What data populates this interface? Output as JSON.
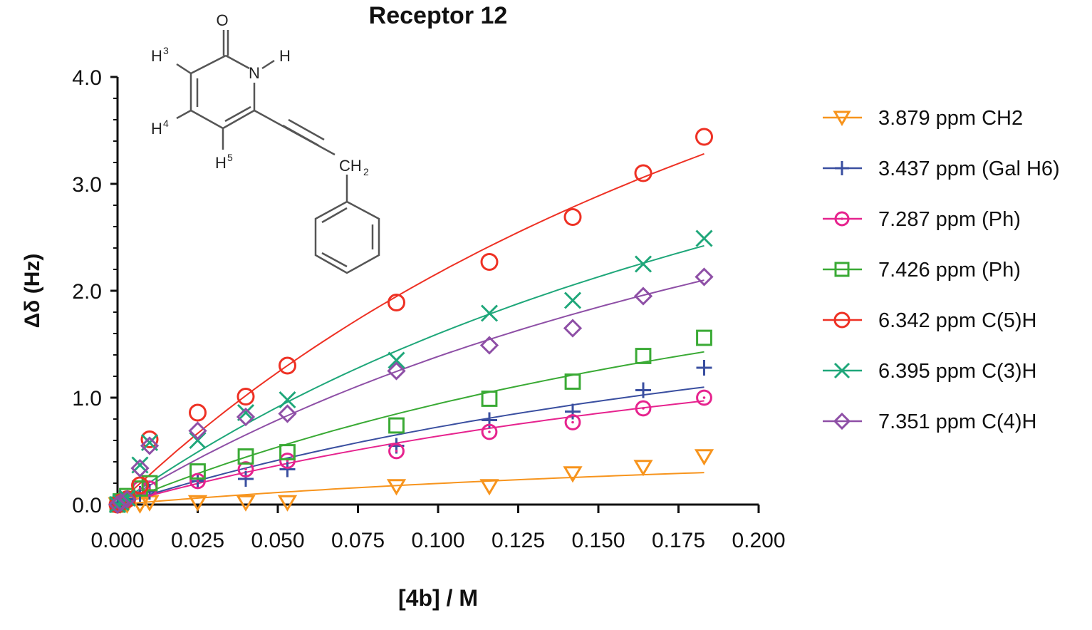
{
  "chart_data": {
    "type": "scatter",
    "title": "Receptor 12",
    "xlabel": "[4b] / M",
    "ylabel": "Δδ (Hz)",
    "xlim": [
      0,
      0.2
    ],
    "ylim": [
      0,
      4.0
    ],
    "xticks": [
      "0.000",
      "0.025",
      "0.050",
      "0.075",
      "0.100",
      "0.125",
      "0.150",
      "0.175",
      "0.200"
    ],
    "yticks": [
      "0.0",
      "1.0",
      "2.0",
      "3.0",
      "4.0"
    ],
    "legend_position": "right",
    "grid": false,
    "x": [
      0,
      0.001,
      0.003,
      0.007,
      0.01,
      0.025,
      0.04,
      0.053,
      0.087,
      0.116,
      0.142,
      0.164,
      0.183
    ],
    "fit_model": "y = Bmax*x/(Kd+x)",
    "series": [
      {
        "name": "3.879 ppm CH2",
        "marker": "triangle-down",
        "color": "#f7941d",
        "fit": {
          "Bmax": 0.79,
          "Kd": 0.3
        },
        "values": [
          0,
          0,
          0,
          0,
          0.02,
          0.02,
          0.02,
          0.02,
          0.17,
          0.17,
          0.29,
          0.35,
          0.45
        ]
      },
      {
        "name": "3.437 ppm (Gal H6)",
        "marker": "plus",
        "color": "#3a4fa0",
        "fit": {
          "Bmax": 2.9,
          "Kd": 0.3
        },
        "values": [
          0,
          0.02,
          0.05,
          0.1,
          0.12,
          0.22,
          0.24,
          0.33,
          0.55,
          0.79,
          0.87,
          1.07,
          1.28
        ]
      },
      {
        "name": "7.287 ppm (Ph)",
        "marker": "circle-dot",
        "color": "#e6238e",
        "fit": {
          "Bmax": 2.56,
          "Kd": 0.3
        },
        "values": [
          0,
          0.02,
          0.05,
          0.15,
          0.15,
          0.22,
          0.33,
          0.41,
          0.5,
          0.68,
          0.77,
          0.9,
          1.0
        ]
      },
      {
        "name": "7.426 ppm (Ph)",
        "marker": "square",
        "color": "#3aaa35",
        "fit": {
          "Bmax": 3.77,
          "Kd": 0.3
        },
        "values": [
          0,
          0.03,
          0.08,
          0.15,
          0.2,
          0.31,
          0.45,
          0.49,
          0.74,
          0.99,
          1.15,
          1.39,
          1.56
        ]
      },
      {
        "name": "6.342 ppm C(5)H",
        "marker": "circle",
        "color": "#ee3124",
        "fit": {
          "Bmax": 8.66,
          "Kd": 0.3
        },
        "values": [
          0,
          0.02,
          0.05,
          0.18,
          0.61,
          0.86,
          1.01,
          1.3,
          1.89,
          2.27,
          2.69,
          3.1,
          3.44
        ]
      },
      {
        "name": "6.395 ppm C(3)H",
        "marker": "x",
        "color": "#1fa77a",
        "fit": {
          "Bmax": 6.39,
          "Kd": 0.3
        },
        "values": [
          0,
          0.02,
          0.06,
          0.37,
          0.58,
          0.6,
          0.86,
          0.98,
          1.35,
          1.79,
          1.91,
          2.25,
          2.49
        ]
      },
      {
        "name": "7.351 ppm C(4)H",
        "marker": "diamond",
        "color": "#8e4fa6",
        "fit": {
          "Bmax": 5.54,
          "Kd": 0.3
        },
        "values": [
          0,
          0.02,
          0.05,
          0.34,
          0.55,
          0.69,
          0.82,
          0.85,
          1.25,
          1.49,
          1.65,
          1.95,
          2.13
        ]
      }
    ]
  },
  "structure": {
    "O": "O",
    "N": "N",
    "H": "H",
    "H3": "H",
    "H3_sup": "3",
    "H4": "H",
    "H4_sup": "4",
    "H5": "H",
    "H5_sup": "5",
    "CH": "CH",
    "CH_sub": "2"
  }
}
